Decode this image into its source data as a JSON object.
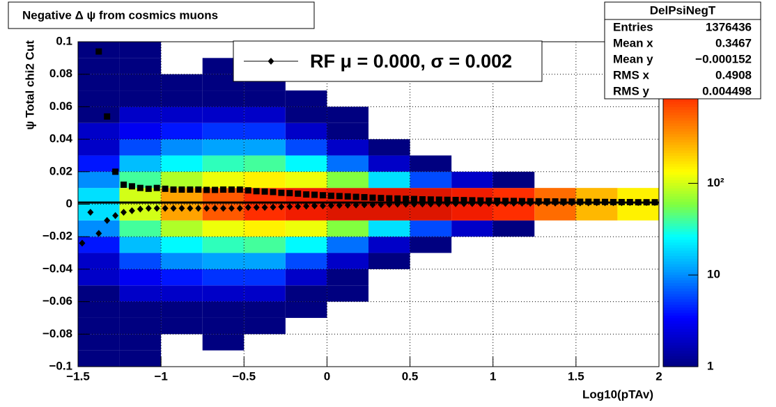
{
  "chart_data": {
    "type": "heatmap",
    "title": "Negative Δ ψ from cosmics muons",
    "xlabel": "Log10(pTAv)",
    "ylabel": "ψ  Total chi2 Cut",
    "xlim": [
      -1.5,
      2
    ],
    "ylim": [
      -0.1,
      0.1
    ],
    "xticks": [
      {
        "value": -1.5,
        "label": "−1.5"
      },
      {
        "value": -1,
        "label": "−1"
      },
      {
        "value": -0.5,
        "label": "−0.5"
      },
      0,
      0.5,
      1,
      1.5,
      2
    ],
    "yticks": [
      {
        "value": -0.1,
        "label": "−0.1"
      },
      {
        "value": -0.08,
        "label": "−0.08"
      },
      {
        "value": -0.06,
        "label": "−0.06"
      },
      {
        "value": -0.04,
        "label": "−0.04"
      },
      {
        "value": -0.02,
        "label": "−0.02"
      },
      0,
      0.02,
      0.04,
      0.06,
      0.08,
      0.1
    ],
    "grid": true,
    "xbins": [
      -1.5,
      -1.25,
      -1,
      -0.75,
      -0.5,
      -0.25,
      0,
      0.25,
      0.5,
      0.75,
      1,
      1.25,
      1.5,
      1.75,
      2
    ],
    "ybins": [
      -0.1,
      -0.09,
      -0.08,
      -0.07,
      -0.06,
      -0.05,
      -0.04,
      -0.03,
      -0.02,
      -0.01,
      0,
      0.01,
      0.02,
      0.03,
      0.04,
      0.05,
      0.06,
      0.07,
      0.08,
      0.09,
      0.1
    ],
    "z": [
      [
        1,
        1,
        0,
        0,
        0,
        0,
        0,
        0,
        0,
        0,
        0,
        0,
        0,
        0
      ],
      [
        1,
        1,
        0,
        1,
        0,
        0,
        0,
        0,
        0,
        0,
        0,
        0,
        0,
        0
      ],
      [
        1,
        1,
        1,
        1,
        1,
        0,
        0,
        0,
        0,
        0,
        0,
        0,
        0,
        0
      ],
      [
        1,
        1,
        1,
        1,
        1,
        1,
        0,
        0,
        0,
        0,
        0,
        0,
        0,
        0
      ],
      [
        1,
        2,
        2,
        2,
        2,
        1,
        1,
        0,
        0,
        0,
        0,
        0,
        0,
        0
      ],
      [
        2,
        3,
        4,
        5,
        5,
        2,
        1,
        0,
        0,
        0,
        0,
        0,
        0,
        0
      ],
      [
        2,
        6,
        10,
        12,
        12,
        6,
        2,
        1,
        0,
        0,
        0,
        0,
        0,
        0
      ],
      [
        4,
        15,
        25,
        35,
        40,
        25,
        8,
        2,
        1,
        0,
        0,
        0,
        0,
        0
      ],
      [
        10,
        40,
        80,
        120,
        150,
        120,
        60,
        20,
        6,
        2,
        1,
        0,
        0,
        0
      ],
      [
        20,
        100,
        300,
        600,
        900,
        1200,
        1500,
        1500,
        1500,
        1200,
        900,
        500,
        250,
        150
      ],
      [
        20,
        100,
        300,
        600,
        900,
        1200,
        1500,
        1500,
        1500,
        1200,
        900,
        500,
        250,
        150
      ],
      [
        10,
        40,
        80,
        120,
        150,
        120,
        60,
        20,
        6,
        2,
        1,
        0,
        0,
        0
      ],
      [
        4,
        15,
        25,
        35,
        40,
        25,
        8,
        2,
        1,
        0,
        0,
        0,
        0,
        0
      ],
      [
        2,
        6,
        10,
        12,
        12,
        6,
        2,
        1,
        0,
        0,
        0,
        0,
        0,
        0
      ],
      [
        2,
        3,
        4,
        5,
        5,
        2,
        1,
        0,
        0,
        0,
        0,
        0,
        0,
        0
      ],
      [
        1,
        2,
        2,
        2,
        2,
        1,
        1,
        0,
        0,
        0,
        0,
        0,
        0,
        0
      ],
      [
        1,
        1,
        1,
        1,
        1,
        1,
        0,
        0,
        0,
        0,
        0,
        0,
        0,
        0
      ],
      [
        1,
        1,
        1,
        1,
        1,
        0,
        0,
        0,
        0,
        0,
        0,
        0,
        0,
        0
      ],
      [
        1,
        1,
        0,
        1,
        0,
        0,
        0,
        0,
        0,
        0,
        0,
        0,
        0,
        0
      ],
      [
        1,
        1,
        0,
        0,
        0,
        0,
        0,
        0,
        0,
        0,
        0,
        0,
        0,
        0
      ]
    ],
    "zlog": true,
    "zlim": [
      1,
      3500
    ],
    "zticks": [
      1,
      10,
      {
        "value": 100,
        "label": "10²"
      }
    ],
    "colorscale": [
      [
        0,
        "#000080"
      ],
      [
        0.15,
        "#0000ff"
      ],
      [
        0.3,
        "#00a0ff"
      ],
      [
        0.4,
        "#00ffff"
      ],
      [
        0.5,
        "#80ff40"
      ],
      [
        0.6,
        "#ffff00"
      ],
      [
        0.72,
        "#ff9000"
      ],
      [
        0.85,
        "#ff2000"
      ],
      [
        1,
        "#900000"
      ]
    ],
    "hline": 0.001,
    "x": [
      -1.475,
      -1.425,
      -1.375,
      -1.325,
      -1.275,
      -1.225,
      -1.175,
      -1.125,
      -1.075,
      -1.025,
      -0.975,
      -0.925,
      -0.875,
      -0.825,
      -0.775,
      -0.725,
      -0.675,
      -0.625,
      -0.575,
      -0.525,
      -0.475,
      -0.425,
      -0.375,
      -0.325,
      -0.275,
      -0.225,
      -0.175,
      -0.125,
      -0.075,
      -0.025,
      0.025,
      0.075,
      0.125,
      0.175,
      0.225,
      0.275,
      0.325,
      0.375,
      0.425,
      0.475,
      0.525,
      0.575,
      0.625,
      0.675,
      0.725,
      0.775,
      0.825,
      0.875,
      0.925,
      0.975,
      1.025,
      1.075,
      1.125,
      1.175,
      1.225,
      1.275,
      1.325,
      1.375,
      1.425,
      1.475,
      1.525,
      1.575,
      1.625,
      1.675,
      1.725,
      1.775,
      1.825,
      1.875,
      1.925,
      1.975
    ],
    "series": [
      {
        "marker": "square",
        "color": "#000000",
        "values": [
          null,
          null,
          0.094,
          0.054,
          0.02,
          0.012,
          0.011,
          0.01,
          0.0095,
          0.01,
          0.0095,
          0.009,
          0.009,
          0.009,
          0.009,
          0.0088,
          0.0088,
          0.009,
          0.009,
          0.009,
          0.0085,
          0.008,
          0.0078,
          0.0075,
          0.007,
          0.0068,
          0.0065,
          0.006,
          0.0058,
          0.0055,
          0.0052,
          0.005,
          0.0048,
          0.0045,
          0.0043,
          0.004,
          0.0038,
          0.0036,
          0.0035,
          0.0033,
          0.0032,
          0.003,
          0.0029,
          0.0028,
          0.0027,
          0.0026,
          0.0025,
          0.0024,
          0.0023,
          0.0022,
          0.0021,
          0.002,
          0.002,
          0.0019,
          0.0018,
          0.0018,
          0.0017,
          0.0017,
          0.0016,
          0.0016,
          0.0015,
          0.0015,
          0.0014,
          0.0014,
          0.0013,
          0.0013,
          0.0013,
          0.0012,
          0.0012,
          0.0012
        ]
      },
      {
        "name": "RF μ =  0.000, σ =   0.002",
        "marker": "diamond",
        "color": "#000000",
        "values": [
          -0.024,
          -0.005,
          -0.018,
          -0.01,
          -0.007,
          -0.005,
          -0.004,
          -0.003,
          -0.0025,
          -0.0025,
          -0.0025,
          -0.0025,
          -0.0025,
          -0.0025,
          -0.0025,
          -0.0025,
          -0.0025,
          -0.0025,
          -0.0025,
          -0.0025,
          -0.002,
          -0.002,
          -0.002,
          -0.0018,
          -0.0016,
          -0.0015,
          -0.0014,
          -0.0012,
          -0.001,
          -0.001,
          -0.0008,
          -0.0007,
          -0.0006,
          -0.0005,
          -0.0004,
          -0.0003,
          -0.0002,
          -0.0001,
          0,
          0,
          0,
          0.0001,
          0.0001,
          0.0002,
          0.0002,
          0.0003,
          0.0003,
          0.0004,
          0.0004,
          0.0005,
          0.0005,
          0.0005,
          0.0006,
          0.0006,
          0.0006,
          0.0007,
          0.0007,
          0.0007,
          0.0008,
          0.0008,
          0.0008,
          0.0008,
          0.0009,
          0.0009,
          0.0009,
          0.0009,
          0.001,
          0.001,
          0.001,
          0.001
        ]
      }
    ],
    "stats": {
      "title": "DelPsiNegT",
      "rows": [
        {
          "name": "Entries",
          "value": "1376436"
        },
        {
          "name": "Mean x",
          "value": "0.3467"
        },
        {
          "name": "Mean y",
          "value": "−0.000152"
        },
        {
          "name": "RMS x",
          "value": "0.4908"
        },
        {
          "name": "RMS y",
          "value": "0.004498"
        }
      ]
    }
  }
}
